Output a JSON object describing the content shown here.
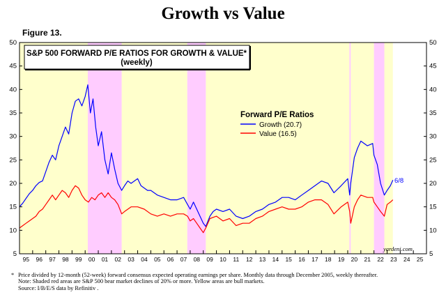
{
  "title": "Growth vs Value",
  "figure_label": "Figure 13.",
  "notes": {
    "star": "*",
    "line1": "Price divided by 12-month (52-week) forward consensus expected operating earnings per share. Monthly data through December 2005, weekly thereafter.",
    "line2": "Note: Shaded red areas are S&P 500 bear market declines of 20% or more. Yellow areas are bull markets.",
    "line3": "Source: I/B/E/S data by Refinitiv ."
  },
  "chart_data": {
    "type": "line",
    "title": "S&P 500 FORWARD P/E RATIOS FOR GROWTH & VALUE*",
    "subtitle": "(weekly)",
    "legend_title": "Forward P/E Ratios",
    "watermark": "yardeni.com",
    "end_label": "6/8",
    "xlim": [
      1995,
      2026
    ],
    "ylim": [
      5,
      50
    ],
    "y_ticks": [
      5,
      10,
      15,
      20,
      25,
      30,
      35,
      40,
      45,
      50
    ],
    "x_tick_labels": [
      "95",
      "96",
      "97",
      "98",
      "99",
      "00",
      "01",
      "02",
      "03",
      "04",
      "05",
      "06",
      "07",
      "08",
      "09",
      "10",
      "11",
      "12",
      "13",
      "14",
      "15",
      "16",
      "17",
      "18",
      "19",
      "20",
      "21",
      "22",
      "23",
      "24",
      "25"
    ],
    "colors": {
      "growth": "#0000ff",
      "value": "#ff0000",
      "bull": "#ffffcc",
      "bear": "#ffccff"
    },
    "bear_markets": [
      [
        2000.2,
        2002.78
      ],
      [
        2007.78,
        2009.19
      ],
      [
        2020.13,
        2020.23
      ],
      [
        2022.0,
        2022.79
      ]
    ],
    "bull_markets": [
      [
        1995.0,
        2000.2
      ],
      [
        2002.78,
        2007.78
      ],
      [
        2009.19,
        2020.13
      ],
      [
        2020.23,
        2022.0
      ],
      [
        2022.79,
        2023.44
      ]
    ],
    "series": [
      {
        "name": "Growth (20.7)",
        "key": "growth",
        "x": [
          1995.0,
          1995.25,
          1995.5,
          1995.75,
          1996.0,
          1996.25,
          1996.5,
          1996.75,
          1997.0,
          1997.25,
          1997.5,
          1997.75,
          1998.0,
          1998.25,
          1998.5,
          1998.75,
          1999.0,
          1999.25,
          1999.5,
          1999.75,
          2000.0,
          2000.2,
          2000.4,
          2000.6,
          2000.8,
          2001.0,
          2001.25,
          2001.5,
          2001.75,
          2002.0,
          2002.25,
          2002.5,
          2002.78,
          2003.0,
          2003.25,
          2003.5,
          2003.75,
          2004.0,
          2004.25,
          2004.5,
          2004.75,
          2005.0,
          2005.5,
          2006.0,
          2006.5,
          2007.0,
          2007.5,
          2007.8,
          2008.0,
          2008.25,
          2008.5,
          2008.75,
          2009.0,
          2009.19,
          2009.5,
          2009.75,
          2010.0,
          2010.5,
          2011.0,
          2011.5,
          2012.0,
          2012.5,
          2013.0,
          2013.5,
          2014.0,
          2014.5,
          2015.0,
          2015.5,
          2016.0,
          2016.5,
          2017.0,
          2017.5,
          2018.0,
          2018.5,
          2018.95,
          2019.5,
          2020.0,
          2020.15,
          2020.23,
          2020.5,
          2020.75,
          2021.0,
          2021.5,
          2021.9,
          2022.0,
          2022.25,
          2022.5,
          2022.79,
          2023.0,
          2023.25,
          2023.44
        ],
        "values": [
          15.0,
          15.8,
          16.8,
          17.8,
          18.5,
          19.5,
          20.2,
          20.5,
          22.5,
          24.5,
          26.0,
          25.0,
          28.0,
          30.0,
          32.0,
          30.5,
          35.0,
          37.5,
          38.0,
          36.5,
          38.5,
          41.0,
          35.0,
          38.0,
          32.0,
          28.0,
          31.0,
          25.0,
          22.0,
          26.5,
          23.0,
          20.0,
          18.5,
          19.5,
          20.5,
          20.0,
          20.5,
          21.0,
          19.5,
          19.0,
          18.5,
          18.5,
          17.5,
          17.0,
          16.5,
          16.5,
          17.0,
          15.5,
          14.5,
          16.0,
          14.5,
          13.0,
          11.5,
          10.8,
          13.0,
          14.0,
          14.5,
          14.0,
          14.5,
          13.0,
          12.5,
          13.0,
          14.0,
          14.5,
          15.5,
          16.0,
          17.0,
          17.0,
          16.5,
          17.5,
          18.5,
          19.5,
          20.5,
          20.0,
          18.0,
          19.5,
          21.0,
          17.5,
          20.0,
          25.5,
          27.5,
          29.0,
          28.0,
          28.5,
          26.0,
          24.0,
          20.0,
          17.5,
          18.5,
          19.5,
          20.7
        ]
      },
      {
        "name": "Value (16.5)",
        "key": "value",
        "x": [
          1995.0,
          1995.25,
          1995.5,
          1995.75,
          1996.0,
          1996.25,
          1996.5,
          1996.75,
          1997.0,
          1997.25,
          1997.5,
          1997.75,
          1998.0,
          1998.25,
          1998.5,
          1998.75,
          1999.0,
          1999.25,
          1999.5,
          1999.75,
          2000.0,
          2000.25,
          2000.5,
          2000.75,
          2001.0,
          2001.25,
          2001.5,
          2001.75,
          2002.0,
          2002.25,
          2002.5,
          2002.78,
          2003.0,
          2003.5,
          2004.0,
          2004.5,
          2005.0,
          2005.5,
          2006.0,
          2006.5,
          2007.0,
          2007.5,
          2007.8,
          2008.0,
          2008.25,
          2008.5,
          2008.75,
          2009.0,
          2009.19,
          2009.5,
          2010.0,
          2010.5,
          2011.0,
          2011.5,
          2012.0,
          2012.5,
          2013.0,
          2013.5,
          2014.0,
          2014.5,
          2015.0,
          2015.5,
          2016.0,
          2016.5,
          2017.0,
          2017.5,
          2018.0,
          2018.5,
          2018.95,
          2019.5,
          2020.0,
          2020.15,
          2020.23,
          2020.5,
          2020.75,
          2021.0,
          2021.5,
          2021.9,
          2022.0,
          2022.25,
          2022.5,
          2022.79,
          2023.0,
          2023.25,
          2023.44
        ],
        "values": [
          10.5,
          11.0,
          11.5,
          12.0,
          12.5,
          13.0,
          14.0,
          14.5,
          15.5,
          16.5,
          17.5,
          16.5,
          17.5,
          18.5,
          18.0,
          17.0,
          18.5,
          19.5,
          19.0,
          17.5,
          16.5,
          16.0,
          17.0,
          16.5,
          17.5,
          18.0,
          17.0,
          18.0,
          17.0,
          16.5,
          15.5,
          13.5,
          14.0,
          15.0,
          15.0,
          14.5,
          13.5,
          13.0,
          13.5,
          13.0,
          13.5,
          13.5,
          13.0,
          12.0,
          12.5,
          11.5,
          10.5,
          9.5,
          10.5,
          12.5,
          13.0,
          12.0,
          12.5,
          11.0,
          11.5,
          11.5,
          12.5,
          13.0,
          14.0,
          14.5,
          15.0,
          14.5,
          14.5,
          15.0,
          16.0,
          16.5,
          16.5,
          15.5,
          13.5,
          15.0,
          16.0,
          14.0,
          11.5,
          15.0,
          16.5,
          17.5,
          17.0,
          17.0,
          16.0,
          15.0,
          14.0,
          13.0,
          15.5,
          16.0,
          16.5
        ]
      }
    ]
  }
}
